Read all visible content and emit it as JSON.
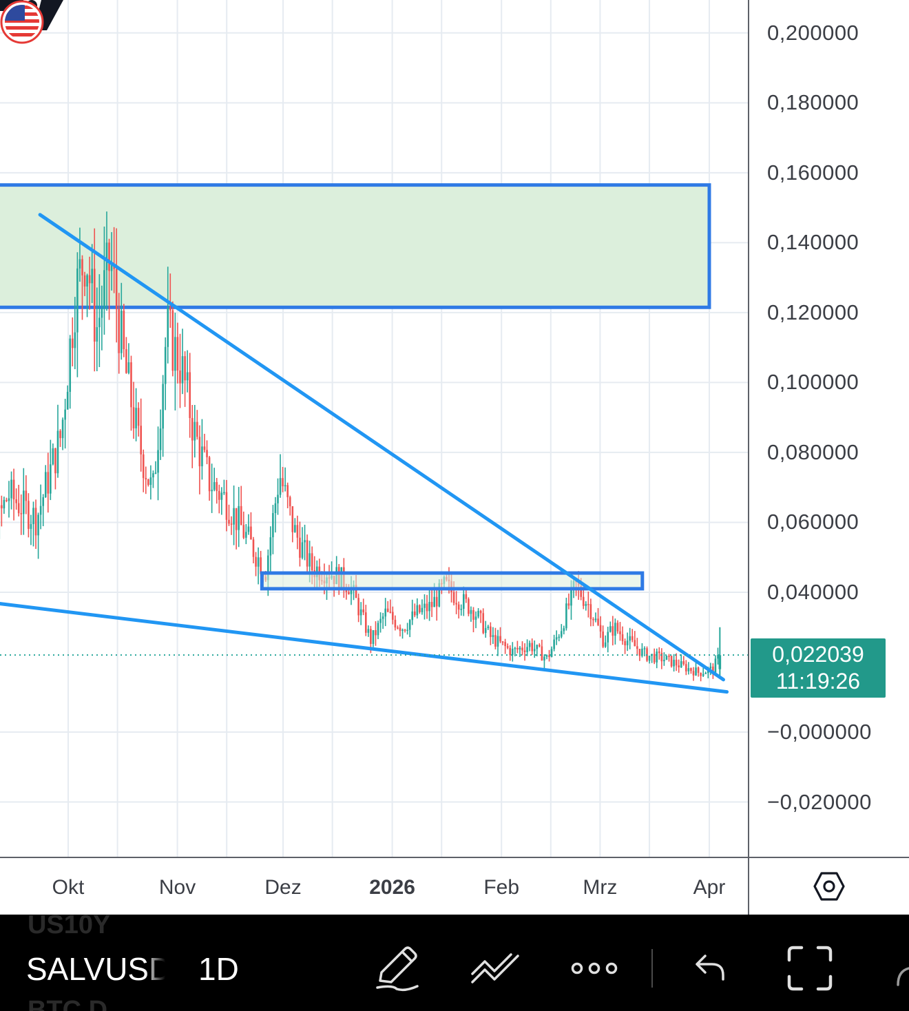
{
  "chart_data": {
    "type": "candlestick",
    "price_axis_labels": [
      "0,200000",
      "0,180000",
      "0,160000",
      "0,140000",
      "0,120000",
      "0,100000",
      "0,080000",
      "0,060000",
      "0,040000",
      "−0,000000",
      "−0,020000"
    ],
    "price_values": [
      0.2,
      0.18,
      0.16,
      0.14,
      0.12,
      0.1,
      0.08,
      0.06,
      0.04,
      0.0,
      -0.02
    ],
    "time_axis_labels": [
      {
        "label": "Okt",
        "date": "2025-10-01",
        "bold": false
      },
      {
        "label": "Nov",
        "date": "2025-11-01",
        "bold": false
      },
      {
        "label": "Dez",
        "date": "2025-12-01",
        "bold": false
      },
      {
        "label": "2026",
        "date": "2026-01-01",
        "bold": true
      },
      {
        "label": "Feb",
        "date": "2026-02-01",
        "bold": false
      },
      {
        "label": "Mrz",
        "date": "2026-03-01",
        "bold": false
      },
      {
        "label": "Apr",
        "date": "2026-04-01",
        "bold": false
      }
    ],
    "last_price": "0,022039",
    "countdown": "11:19:26",
    "last_price_value": 0.022039,
    "up_color": "#26a69a",
    "down_color": "#ef5350",
    "close_path": [
      [
        "2025-09-01",
        0.062
      ],
      [
        "2025-09-08",
        0.052
      ],
      [
        "2025-09-14",
        0.068
      ],
      [
        "2025-09-22",
        0.061
      ],
      [
        "2025-09-29",
        0.085
      ],
      [
        "2025-10-03",
        0.125
      ],
      [
        "2025-10-06",
        0.138
      ],
      [
        "2025-10-09",
        0.115
      ],
      [
        "2025-10-13",
        0.135
      ],
      [
        "2025-10-17",
        0.105
      ],
      [
        "2025-10-21",
        0.083
      ],
      [
        "2025-10-25",
        0.068
      ],
      [
        "2025-10-29",
        0.115
      ],
      [
        "2025-11-02",
        0.105
      ],
      [
        "2025-11-06",
        0.085
      ],
      [
        "2025-11-10",
        0.072
      ],
      [
        "2025-11-15",
        0.066
      ],
      [
        "2025-11-20",
        0.057
      ],
      [
        "2025-11-26",
        0.046
      ],
      [
        "2025-11-30",
        0.074
      ],
      [
        "2025-12-04",
        0.058
      ],
      [
        "2025-12-09",
        0.047
      ],
      [
        "2025-12-14",
        0.046
      ],
      [
        "2025-12-20",
        0.042
      ],
      [
        "2025-12-26",
        0.026
      ],
      [
        "2025-12-30",
        0.034
      ],
      [
        "2026-01-04",
        0.03
      ],
      [
        "2026-01-08",
        0.034
      ],
      [
        "2026-01-12",
        0.036
      ],
      [
        "2026-01-16",
        0.042
      ],
      [
        "2026-01-20",
        0.038
      ],
      [
        "2026-01-24",
        0.035
      ],
      [
        "2026-01-29",
        0.027
      ],
      [
        "2026-02-04",
        0.023
      ],
      [
        "2026-02-09",
        0.025
      ],
      [
        "2026-02-14",
        0.021
      ],
      [
        "2026-02-18",
        0.03
      ],
      [
        "2026-02-22",
        0.042
      ],
      [
        "2026-02-26",
        0.036
      ],
      [
        "2026-03-02",
        0.026
      ],
      [
        "2026-03-05",
        0.03
      ],
      [
        "2026-03-09",
        0.026
      ],
      [
        "2026-03-14",
        0.022
      ],
      [
        "2026-03-19",
        0.021
      ],
      [
        "2026-03-24",
        0.019
      ],
      [
        "2026-03-29",
        0.017
      ],
      [
        "2026-04-02",
        0.018
      ],
      [
        "2026-04-04",
        0.022
      ]
    ],
    "final_candle": {
      "date": "2026-04-04",
      "open": 0.018,
      "high": 0.03,
      "low": 0.016,
      "close": 0.022
    }
  },
  "drawings": {
    "zone_color": "#dcefdc",
    "zone_border_color": "#2f7ae5",
    "trendline_color": "#2196f3",
    "resistance_zone": {
      "top": 0.1565,
      "bottom": 0.1215,
      "start": "2025-08-20",
      "end": "2026-04-01"
    },
    "support_zone": {
      "top": 0.0455,
      "bottom": 0.041,
      "start": "2025-11-25",
      "end": "2026-03-13"
    },
    "upper_trendline": {
      "p1": [
        "2025-09-23",
        0.148
      ],
      "p2": [
        "2026-04-05",
        0.015
      ]
    },
    "lower_trendline": {
      "p1": [
        "2025-08-20",
        0.0395
      ],
      "p2": [
        "2026-04-06",
        0.0115
      ]
    }
  },
  "toolbar": {
    "symbol": "SALVUSD",
    "interval": "1D",
    "ghost_above": "US10Y",
    "ghost_below": "BTC.D"
  },
  "icons": {
    "logo": "tradingview-logo-icon",
    "flag": "us-flag-icon",
    "settings": "axis-settings-icon",
    "draw": "pencil-icon",
    "trendline": "trendline-tool-icon",
    "more": "more-dots-icon",
    "undo": "undo-icon",
    "fullscreen": "fullscreen-icon"
  }
}
